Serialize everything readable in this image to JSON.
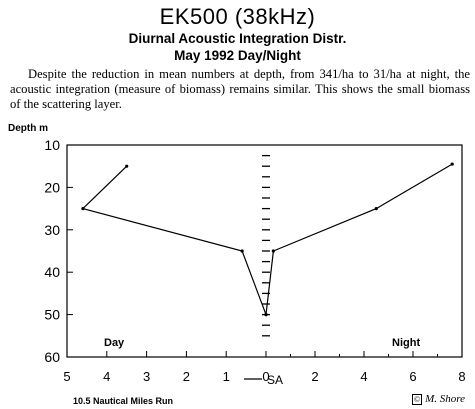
{
  "header": {
    "title": "EK500 (38kHz)",
    "subtitle": "Diurnal Acoustic Integration Distr.",
    "subtitle2": "May 1992 Day/Night"
  },
  "description": "Despite the reduction in mean numbers at depth, from 341/ha to 31/ha at night, the acoustic integration (measure of biomass) remains similar.  This shows the small biomass of the scattering layer.",
  "footer": {
    "note": "10.5 Nautical Miles Run",
    "signature": "M. Shore"
  },
  "chart_data": {
    "type": "line",
    "ylabel": "Depth m",
    "xlabel": "SA",
    "y_ticks": [
      10,
      20,
      30,
      40,
      50,
      60
    ],
    "ylim": [
      10,
      60
    ],
    "y_inverted": true,
    "x_ticks": [
      {
        "value": -5,
        "label": "5"
      },
      {
        "value": -4,
        "label": "4"
      },
      {
        "value": -3,
        "label": "3"
      },
      {
        "value": -2,
        "label": "2"
      },
      {
        "value": -1,
        "label": "1"
      },
      {
        "value": 0,
        "label": "0"
      },
      {
        "value": 2,
        "label": "2"
      },
      {
        "value": 4,
        "label": "4"
      },
      {
        "value": 6,
        "label": "6"
      },
      {
        "value": 8,
        "label": "8"
      }
    ],
    "day_scale": [
      -5,
      0
    ],
    "night_scale": [
      0,
      8
    ],
    "series": [
      {
        "name": "Day",
        "side": "left",
        "points": [
          {
            "sa": 3.5,
            "depth": 15
          },
          {
            "sa": 4.6,
            "depth": 25
          },
          {
            "sa": 0.6,
            "depth": 35
          },
          {
            "sa": 0.0,
            "depth": 50
          }
        ]
      },
      {
        "name": "Night",
        "side": "right",
        "points": [
          {
            "sa": 7.6,
            "depth": 14.5
          },
          {
            "sa": 4.5,
            "depth": 25
          },
          {
            "sa": 0.3,
            "depth": 35
          },
          {
            "sa": 0.0,
            "depth": 50
          }
        ]
      }
    ],
    "center_dash_depths": [
      12.5,
      15,
      17.5,
      20,
      22.5,
      25,
      27.5,
      30,
      32.5,
      35,
      37.5,
      40,
      42.5,
      45,
      47.5,
      50,
      52.5,
      55
    ]
  }
}
